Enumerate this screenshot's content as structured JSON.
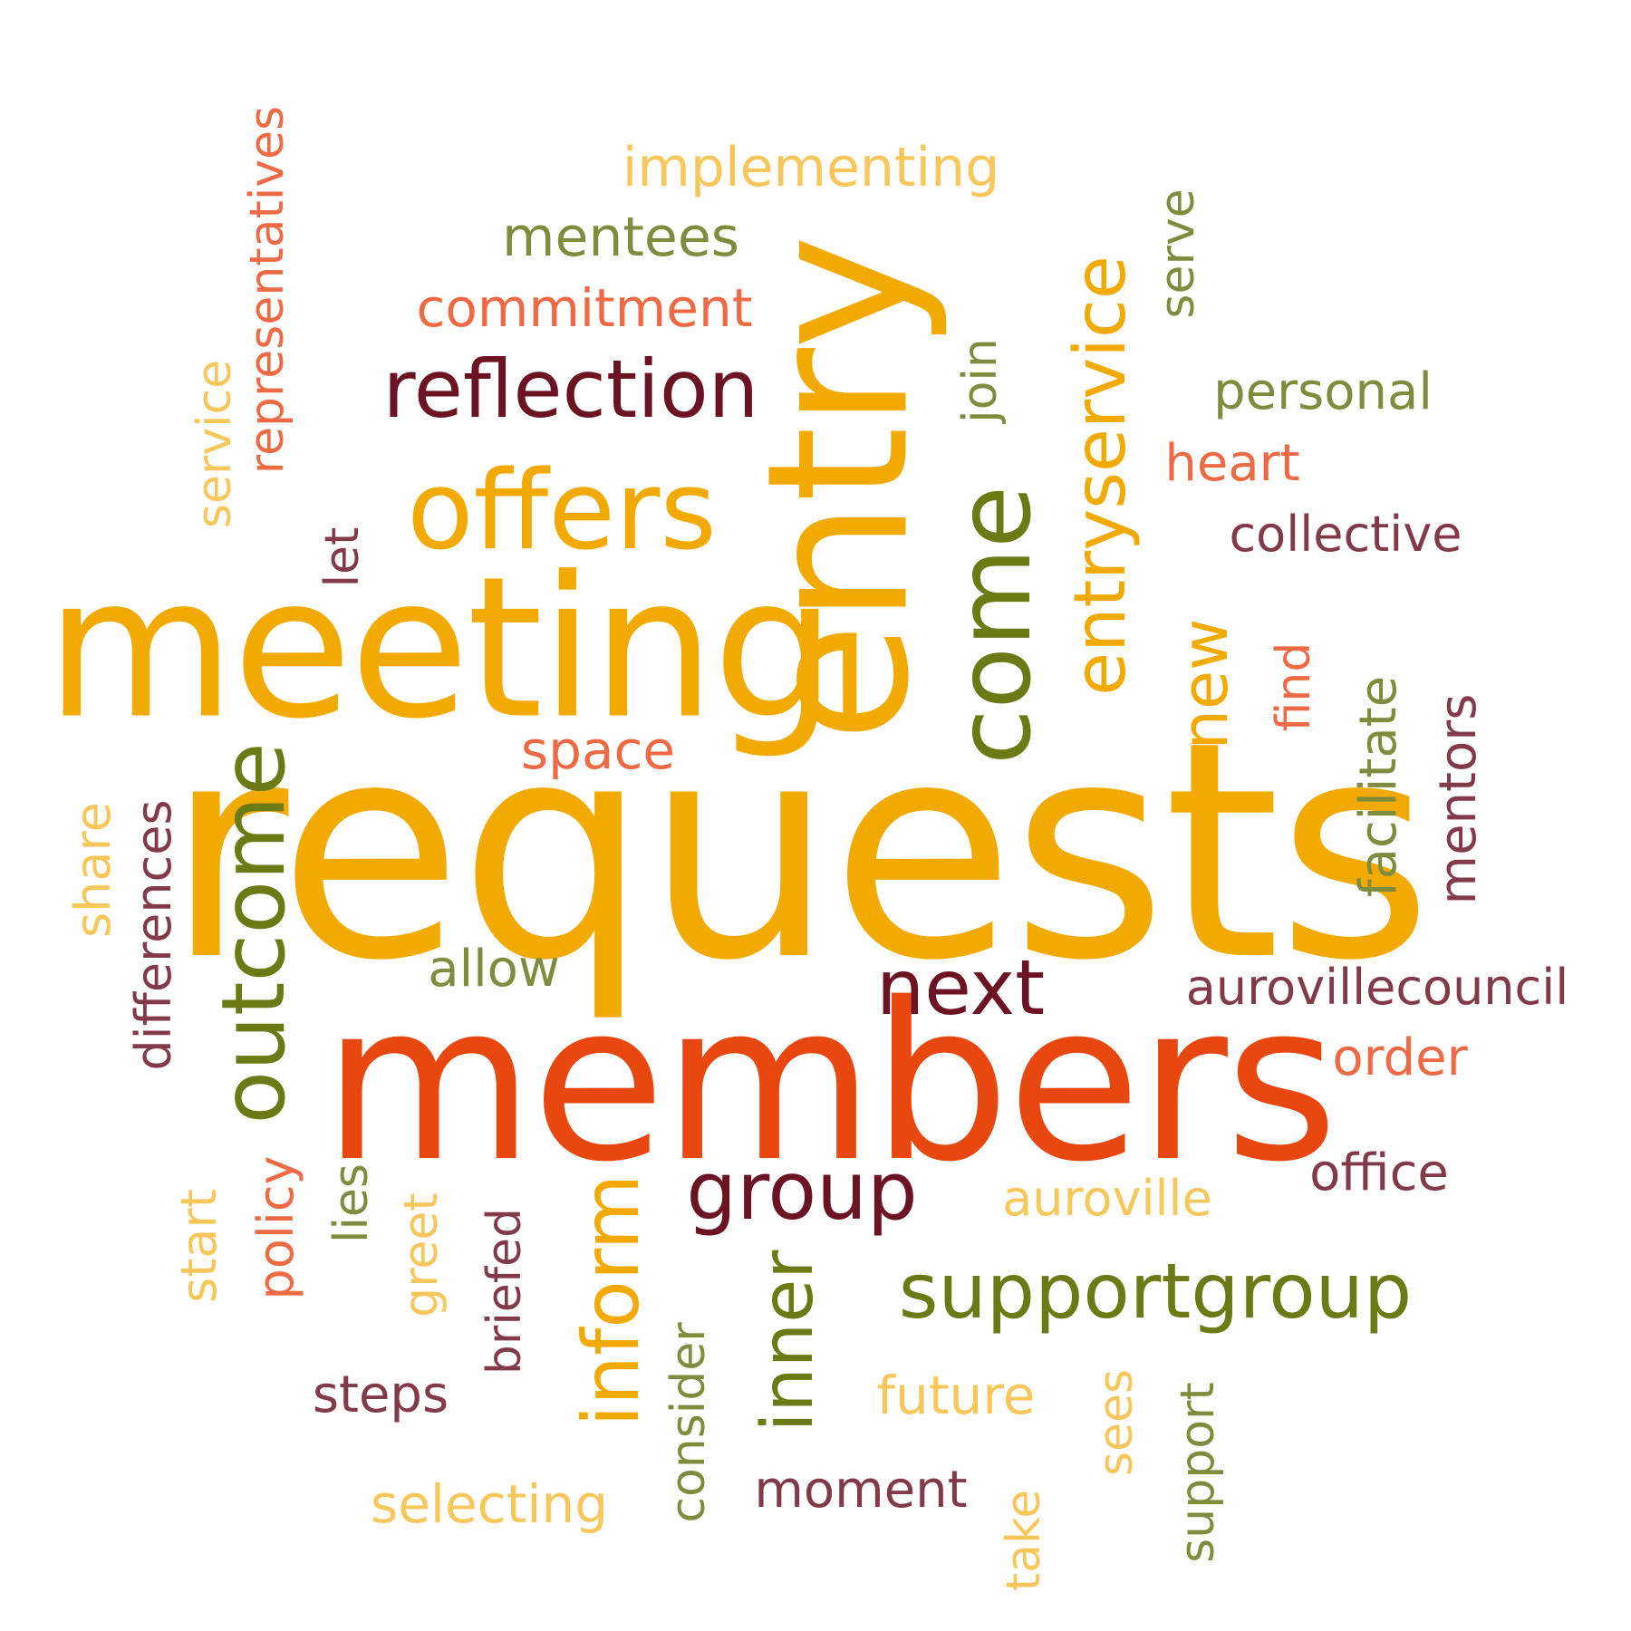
{
  "colors": {
    "background": "#ffffff",
    "dark_amber": "#f2a900",
    "light_amber": "#f7c75c",
    "deep_orange": "#e8470f",
    "coral": "#ee6a45",
    "olive": "#6b7a14",
    "sage": "#7f8c3d",
    "maroon": "#6b1323",
    "plum": "#82394a"
  },
  "words": [
    {
      "text": "requests",
      "color": "#f2a900"
    },
    {
      "text": "members",
      "color": "#e8470f"
    },
    {
      "text": "meeting",
      "color": "#f2a900"
    },
    {
      "text": "entry",
      "color": "#f2a900"
    },
    {
      "text": "offers",
      "color": "#f2a900"
    },
    {
      "text": "reflection",
      "color": "#6b1323"
    },
    {
      "text": "come",
      "color": "#6b7a14"
    },
    {
      "text": "entryservice",
      "color": "#f2a900"
    },
    {
      "text": "outcome",
      "color": "#6b7a14"
    },
    {
      "text": "supportgroup",
      "color": "#6b7a14"
    },
    {
      "text": "group",
      "color": "#6b1323"
    },
    {
      "text": "next",
      "color": "#6b1323"
    },
    {
      "text": "inform",
      "color": "#f2a900"
    },
    {
      "text": "inner",
      "color": "#6b7a14"
    },
    {
      "text": "new",
      "color": "#f2a900"
    },
    {
      "text": "implementing",
      "color": "#f7c75c"
    },
    {
      "text": "mentees",
      "color": "#7f8c3d"
    },
    {
      "text": "commitment",
      "color": "#ee6a45"
    },
    {
      "text": "representatives",
      "color": "#ee6a45"
    },
    {
      "text": "aurovillecouncil",
      "color": "#82394a"
    },
    {
      "text": "personal",
      "color": "#7f8c3d"
    },
    {
      "text": "collective",
      "color": "#82394a"
    },
    {
      "text": "heart",
      "color": "#ee6a45"
    },
    {
      "text": "serve",
      "color": "#7f8c3d"
    },
    {
      "text": "join",
      "color": "#7f8c3d"
    },
    {
      "text": "service",
      "color": "#f7c75c"
    },
    {
      "text": "let",
      "color": "#82394a"
    },
    {
      "text": "space",
      "color": "#ee6a45"
    },
    {
      "text": "find",
      "color": "#ee6a45"
    },
    {
      "text": "facilitate",
      "color": "#7f8c3d"
    },
    {
      "text": "mentors",
      "color": "#82394a"
    },
    {
      "text": "share",
      "color": "#f7c75c"
    },
    {
      "text": "differences",
      "color": "#82394a"
    },
    {
      "text": "allow",
      "color": "#7f8c3d"
    },
    {
      "text": "order",
      "color": "#ee6a45"
    },
    {
      "text": "office",
      "color": "#82394a"
    },
    {
      "text": "auroville",
      "color": "#f7c75c"
    },
    {
      "text": "start",
      "color": "#f7c75c"
    },
    {
      "text": "policy",
      "color": "#ee6a45"
    },
    {
      "text": "lies",
      "color": "#7f8c3d"
    },
    {
      "text": "greet",
      "color": "#f7c75c"
    },
    {
      "text": "briefed",
      "color": "#82394a"
    },
    {
      "text": "steps",
      "color": "#82394a"
    },
    {
      "text": "consider",
      "color": "#7f8c3d"
    },
    {
      "text": "future",
      "color": "#f7c75c"
    },
    {
      "text": "moment",
      "color": "#82394a"
    },
    {
      "text": "selecting",
      "color": "#f7c75c"
    },
    {
      "text": "take",
      "color": "#f7c75c"
    },
    {
      "text": "sees",
      "color": "#f7c75c"
    },
    {
      "text": "support",
      "color": "#7f8c3d"
    }
  ]
}
